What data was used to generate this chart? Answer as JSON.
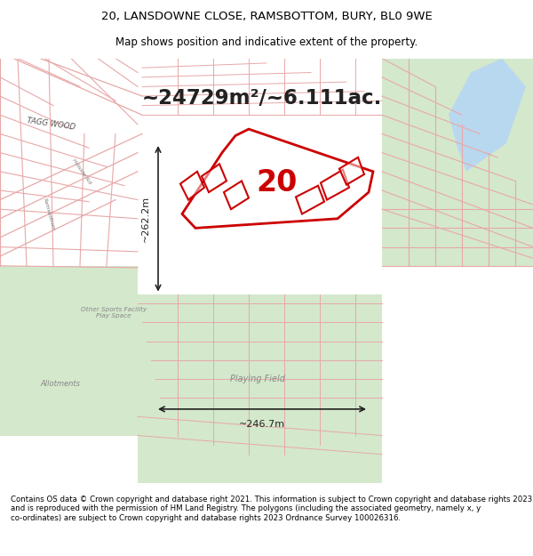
{
  "title_line1": "20, LANSDOWNE CLOSE, RAMSBOTTOM, BURY, BL0 9WE",
  "title_line2": "Map shows position and indicative extent of the property.",
  "footer_text": "Contains OS data © Crown copyright and database right 2021. This information is subject to Crown copyright and database rights 2023 and is reproduced with the permission of HM Land Registry. The polygons (including the associated geometry, namely x, y co-ordinates) are subject to Crown copyright and database rights 2023 Ordnance Survey 100026316.",
  "area_text": "~24729m²/~6.111ac.",
  "label_number": "20",
  "dim_left": "~262.2m",
  "dim_bottom": "~246.7m",
  "road_color": "#e8a8a8",
  "highlight_stroke": "#cc0000",
  "map_bg_color": "#f0eaea",
  "green_color": "#d4e8cc",
  "water_color": "#b8d8ef",
  "text_color": "#333333",
  "label_color": "#888888"
}
